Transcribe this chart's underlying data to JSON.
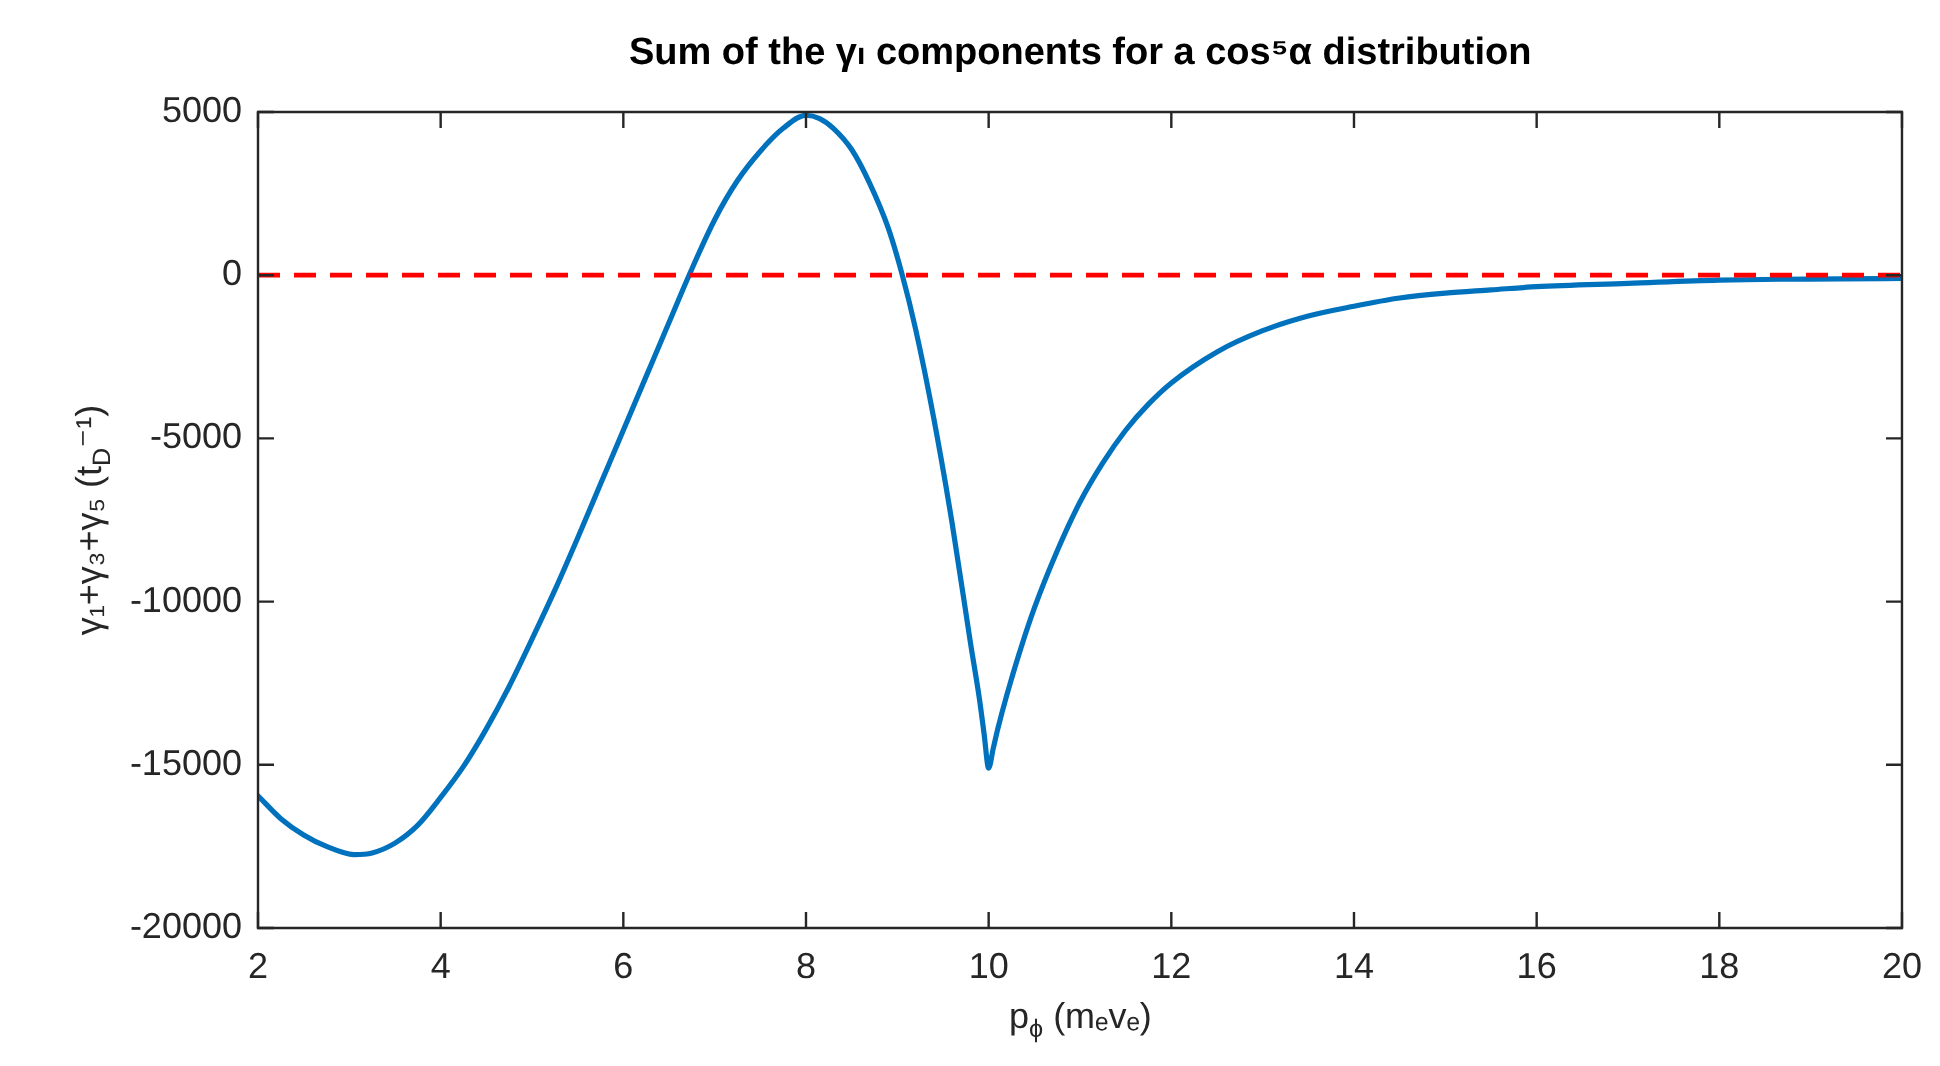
{
  "chart_data": {
    "type": "line",
    "title": "Sum of the γₗ components for a cos⁵α distribution",
    "xlabel": "p$_{ϕ}$ (mₑvₑ)",
    "ylabel": "γ₁+γ₃+γ₅ (t$_{D}$⁻¹)",
    "x": [
      2.0,
      2.25,
      2.5,
      2.75,
      3.05,
      3.25,
      3.5,
      3.75,
      4.0,
      4.25,
      4.5,
      4.75,
      5.0,
      5.25,
      5.5,
      5.75,
      6.0,
      6.25,
      6.5,
      6.72,
      7.0,
      7.25,
      7.5,
      7.75,
      8.0,
      8.15,
      8.3,
      8.5,
      8.7,
      8.9,
      9.05,
      9.2,
      9.4,
      9.6,
      9.8,
      9.9,
      9.95,
      10.0,
      10.05,
      10.1,
      10.2,
      10.35,
      10.5,
      10.75,
      11.0,
      11.25,
      11.5,
      11.75,
      12.0,
      12.5,
      13.0,
      13.5,
      14.0,
      14.5,
      15.0,
      15.5,
      16.0,
      17.0,
      18.0,
      20.0
    ],
    "series": [
      {
        "color": "#0072bd",
        "values": [
          -15950,
          -16650,
          -17150,
          -17500,
          -17750,
          -17700,
          -17400,
          -16850,
          -16000,
          -15050,
          -13900,
          -12600,
          -11150,
          -9650,
          -8050,
          -6400,
          -4750,
          -3100,
          -1450,
          0,
          1700,
          2900,
          3800,
          4500,
          4900,
          4800,
          4500,
          3850,
          2800,
          1450,
          50,
          -1650,
          -4400,
          -7600,
          -11250,
          -13000,
          -14050,
          -15100,
          -14500,
          -13900,
          -12850,
          -11450,
          -10200,
          -8450,
          -6950,
          -5750,
          -4750,
          -3950,
          -3300,
          -2350,
          -1700,
          -1250,
          -950,
          -700,
          -550,
          -450,
          -350,
          -250,
          -150,
          -100
        ]
      }
    ],
    "xlim": [
      2,
      20
    ],
    "xticks": [
      2,
      4,
      6,
      8,
      10,
      12,
      14,
      16,
      18,
      20
    ],
    "ylim": [
      -20000,
      5000
    ],
    "yticks": [
      -20000,
      -15000,
      -10000,
      -5000,
      0,
      5000
    ],
    "ref_lines": [
      {
        "axis": "y",
        "value": 0,
        "color": "#ff0000",
        "line_style": "dashed"
      }
    ],
    "marker": "none"
  }
}
